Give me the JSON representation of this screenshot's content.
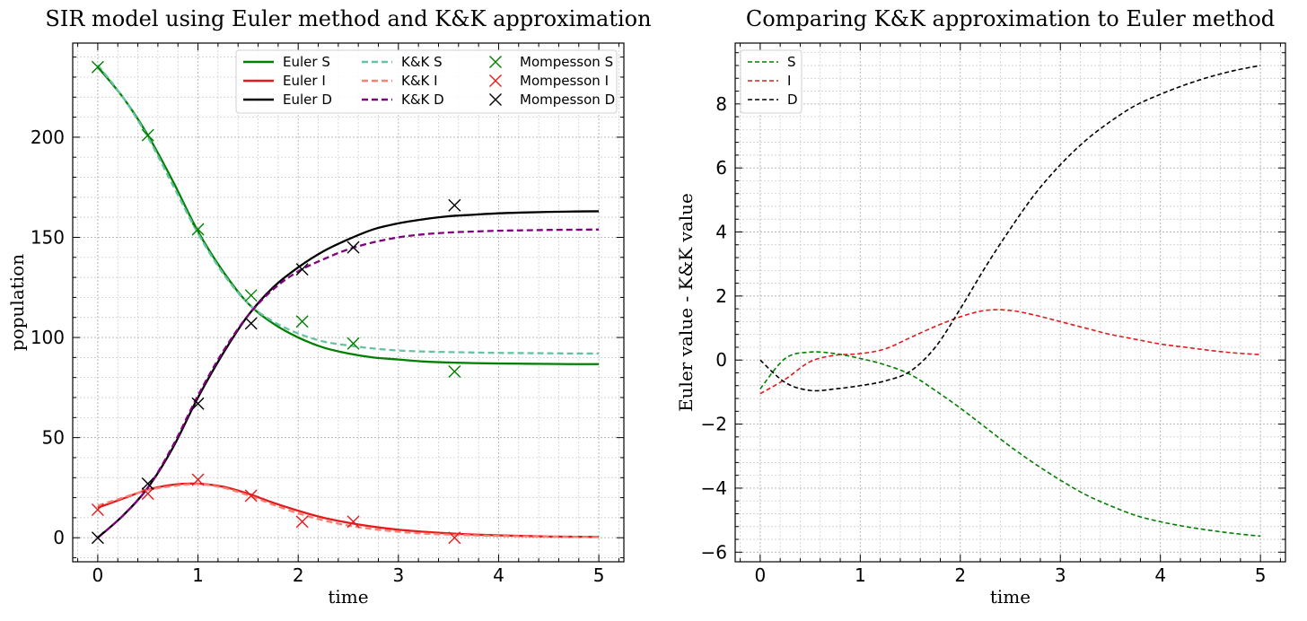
{
  "chart_data": [
    {
      "type": "line",
      "title": "SIR model using Euler method and K&K approximation",
      "xlabel": "time",
      "ylabel": "population",
      "xlim": [
        -0.25,
        5.25
      ],
      "ylim": [
        -12,
        247
      ],
      "xticks": [
        0,
        1,
        2,
        3,
        4,
        5
      ],
      "yticks": [
        0,
        50,
        100,
        150,
        200
      ],
      "grid": true,
      "legend_position": "top-right",
      "series": [
        {
          "name": "Euler S",
          "style": "solid",
          "color": "#008000",
          "x": [
            0,
            0.25,
            0.5,
            0.75,
            1,
            1.25,
            1.5,
            1.75,
            2,
            2.25,
            2.5,
            2.75,
            3,
            3.25,
            3.5,
            3.75,
            4,
            4.25,
            4.5,
            4.75,
            5
          ],
          "y": [
            235,
            220,
            201,
            178,
            153,
            133,
            117,
            107,
            100,
            95,
            92,
            90,
            89,
            88,
            87.5,
            87.2,
            87,
            86.9,
            86.8,
            86.7,
            86.7
          ]
        },
        {
          "name": "Euler I",
          "style": "solid",
          "color": "#e41a1c",
          "x": [
            0,
            0.25,
            0.5,
            0.75,
            1,
            1.25,
            1.5,
            1.75,
            2,
            2.25,
            2.5,
            2.75,
            3,
            3.25,
            3.5,
            3.75,
            4,
            4.25,
            4.5,
            4.75,
            5
          ],
          "y": [
            15,
            19.5,
            24,
            26.5,
            27,
            25.5,
            22,
            17.5,
            13.5,
            10,
            7.5,
            5.5,
            4,
            3,
            2.2,
            1.6,
            1.2,
            0.9,
            0.6,
            0.5,
            0.4
          ]
        },
        {
          "name": "Euler D",
          "style": "solid",
          "color": "#000000",
          "x": [
            0,
            0.25,
            0.5,
            0.75,
            1,
            1.25,
            1.5,
            1.75,
            2,
            2.25,
            2.5,
            2.75,
            3,
            3.25,
            3.5,
            3.75,
            4,
            4.25,
            4.5,
            4.75,
            5
          ],
          "y": [
            0,
            11,
            25,
            45,
            70,
            92,
            111,
            125,
            135,
            143,
            149,
            154,
            157,
            159,
            160.5,
            161.3,
            162,
            162.4,
            162.7,
            162.9,
            163
          ]
        },
        {
          "name": "K&K S",
          "style": "dashed",
          "color": "#66c2a5",
          "x": [
            0,
            0.25,
            0.5,
            0.75,
            1,
            1.25,
            1.5,
            1.75,
            2,
            2.25,
            2.5,
            2.75,
            3,
            3.25,
            3.5,
            3.75,
            4,
            4.25,
            4.5,
            4.75,
            5
          ],
          "y": [
            236,
            220,
            200,
            176,
            152,
            132,
            117,
            108,
            102,
            98,
            96,
            94.5,
            93.5,
            93,
            92.7,
            92.5,
            92.3,
            92.2,
            92.1,
            92,
            92
          ]
        },
        {
          "name": "K&K I",
          "style": "dashed",
          "color": "#fb8072",
          "x": [
            0,
            0.25,
            0.5,
            0.75,
            1,
            1.25,
            1.5,
            1.75,
            2,
            2.25,
            2.5,
            2.75,
            3,
            3.25,
            3.5,
            3.75,
            4,
            4.25,
            4.5,
            4.75,
            5
          ],
          "y": [
            16,
            20,
            23.8,
            25.8,
            26.8,
            25,
            21.2,
            16.5,
            12.2,
            8.7,
            6.1,
            4.3,
            3,
            2.1,
            1.6,
            1.2,
            0.9,
            0.7,
            0.5,
            0.4,
            0.3
          ]
        },
        {
          "name": "K&K D",
          "style": "dashed",
          "color": "#800080",
          "x": [
            0,
            0.25,
            0.5,
            0.75,
            1,
            1.25,
            1.5,
            1.75,
            2,
            2.25,
            2.5,
            2.75,
            3,
            3.25,
            3.5,
            3.75,
            4,
            4.25,
            4.5,
            4.75,
            5
          ],
          "y": [
            0,
            11,
            25,
            46,
            71,
            93,
            111,
            124,
            133,
            139,
            144,
            147.5,
            150,
            151.5,
            152.4,
            152.9,
            153.3,
            153.5,
            153.7,
            153.8,
            153.9
          ]
        },
        {
          "name": "Mompesson S",
          "style": "marker-x",
          "color": "#008000",
          "x": [
            0,
            0.5,
            1,
            1.53,
            2.04,
            2.55,
            3.56
          ],
          "y": [
            235,
            201,
            154,
            121,
            108,
            97,
            83
          ]
        },
        {
          "name": "Mompesson I",
          "style": "marker-x",
          "color": "#e41a1c",
          "x": [
            0,
            0.5,
            1,
            1.53,
            2.04,
            2.55,
            3.56
          ],
          "y": [
            14,
            22,
            29,
            21,
            8,
            8,
            0
          ]
        },
        {
          "name": "Mompesson D",
          "style": "marker-x",
          "color": "#000000",
          "x": [
            0,
            0.5,
            1,
            1.53,
            2.04,
            2.55,
            3.56
          ],
          "y": [
            0,
            27,
            67,
            107,
            134,
            145,
            166
          ]
        }
      ]
    },
    {
      "type": "line",
      "title": "Comparing K&K approximation to Euler method",
      "xlabel": "time",
      "ylabel": "Euler value - K&K value",
      "xlim": [
        -0.25,
        5.25
      ],
      "ylim": [
        -6.3,
        9.9
      ],
      "xticks": [
        0,
        1,
        2,
        3,
        4,
        5
      ],
      "yticks": [
        -6,
        -4,
        -2,
        0,
        2,
        4,
        6,
        8
      ],
      "ytick_labels": [
        "−6",
        "−4",
        "−2",
        "0",
        "2",
        "4",
        "6",
        "8"
      ],
      "grid": true,
      "legend_position": "top-left",
      "series": [
        {
          "name": "S",
          "style": "dashed",
          "color": "#008000",
          "x": [
            0,
            0.25,
            0.5,
            0.75,
            1,
            1.25,
            1.5,
            1.75,
            2,
            2.25,
            2.5,
            2.75,
            3,
            3.25,
            3.5,
            3.75,
            4,
            4.25,
            4.5,
            4.75,
            5
          ],
          "y": [
            -0.9,
            0.05,
            0.25,
            0.2,
            0.05,
            -0.15,
            -0.45,
            -0.95,
            -1.5,
            -2.1,
            -2.7,
            -3.25,
            -3.75,
            -4.2,
            -4.55,
            -4.85,
            -5.05,
            -5.2,
            -5.32,
            -5.42,
            -5.5
          ]
        },
        {
          "name": "I",
          "style": "dashed",
          "color": "#e41a1c",
          "x": [
            0,
            0.25,
            0.5,
            0.75,
            1,
            1.25,
            1.5,
            1.75,
            2,
            2.25,
            2.5,
            2.75,
            3,
            3.25,
            3.5,
            3.75,
            4,
            4.25,
            4.5,
            4.75,
            5
          ],
          "y": [
            -1.05,
            -0.6,
            -0.05,
            0.15,
            0.2,
            0.35,
            0.7,
            1.05,
            1.35,
            1.55,
            1.55,
            1.4,
            1.2,
            1,
            0.8,
            0.65,
            0.5,
            0.4,
            0.3,
            0.22,
            0.17
          ]
        },
        {
          "name": "D",
          "style": "dashed",
          "color": "#000000",
          "x": [
            0,
            0.25,
            0.5,
            0.75,
            1,
            1.25,
            1.5,
            1.75,
            2,
            2.25,
            2.5,
            2.75,
            3,
            3.25,
            3.5,
            3.75,
            4,
            4.25,
            4.5,
            4.75,
            5
          ],
          "y": [
            0,
            -0.7,
            -0.95,
            -0.9,
            -0.8,
            -0.65,
            -0.35,
            0.4,
            1.6,
            2.9,
            4.1,
            5.2,
            6.1,
            6.85,
            7.45,
            7.95,
            8.3,
            8.6,
            8.85,
            9.05,
            9.2
          ]
        }
      ]
    }
  ]
}
